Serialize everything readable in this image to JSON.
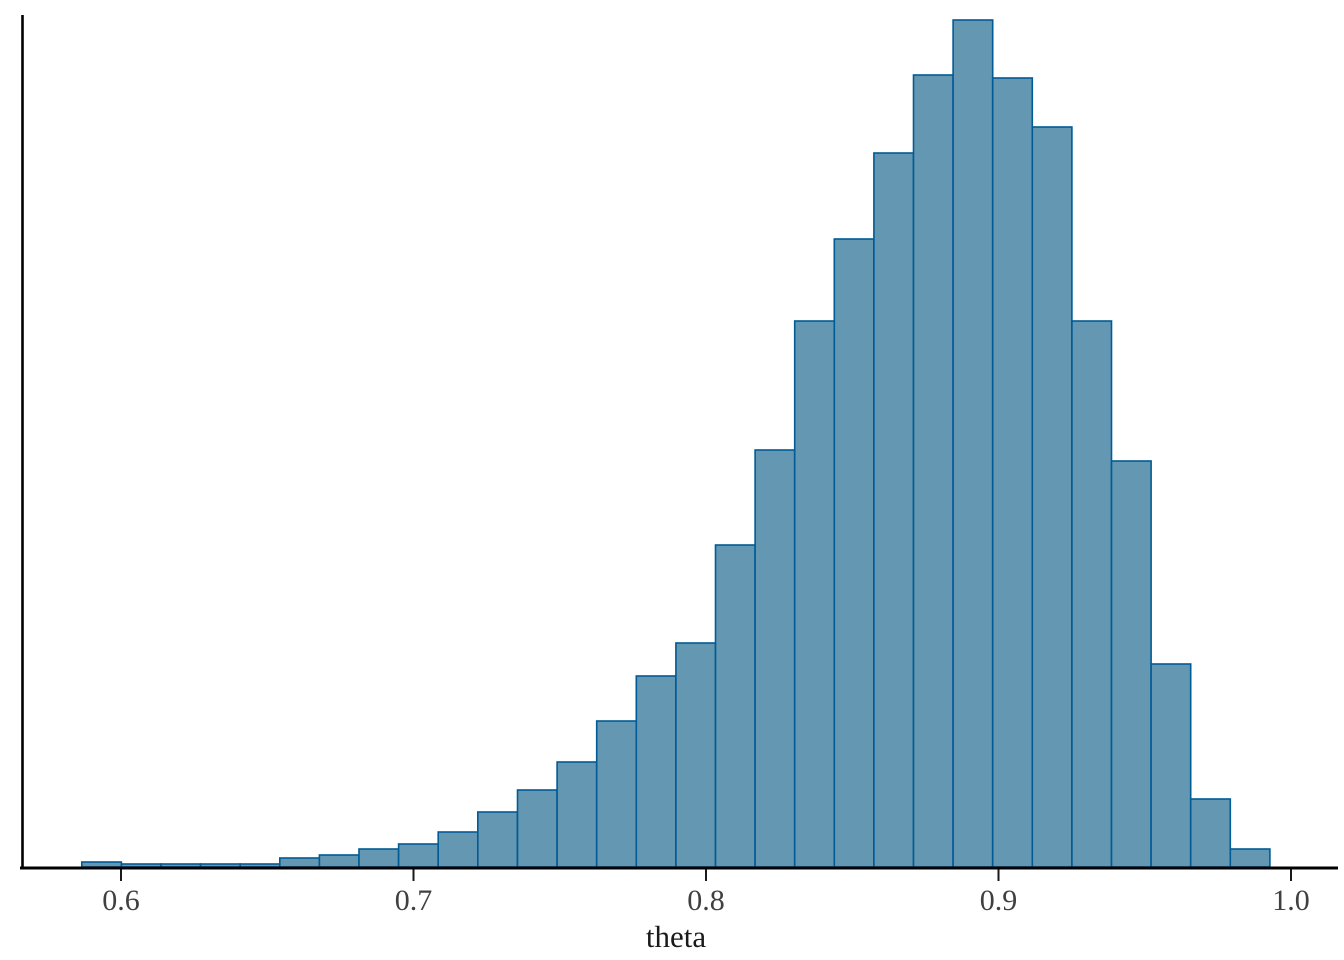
{
  "chart_data": {
    "type": "bar",
    "subtype": "histogram",
    "title": "",
    "xlabel": "theta",
    "ylabel": "",
    "x_tick_values": [
      0.6,
      0.7,
      0.8,
      0.9,
      1.0
    ],
    "x_tick_labels": [
      "0.6",
      "0.7",
      "0.8",
      "0.9",
      "1.0"
    ],
    "x_range_shown": [
      0.56,
      1.02
    ],
    "bin_start": 0.5866,
    "bin_width": 0.01354,
    "bin_count": 30,
    "bin_centers": [
      0.5934,
      0.6069,
      0.6205,
      0.634,
      0.6475,
      0.6611,
      0.6746,
      0.6881,
      0.7017,
      0.7152,
      0.7288,
      0.7423,
      0.7558,
      0.7694,
      0.7829,
      0.7964,
      0.81,
      0.8235,
      0.837,
      0.8506,
      0.8641,
      0.8777,
      0.8912,
      0.9047,
      0.9183,
      0.9318,
      0.9453,
      0.9589,
      0.9724,
      0.986
    ],
    "heights_relative": [
      5,
      3,
      3,
      3,
      3,
      9,
      12,
      18,
      23,
      35,
      55,
      77,
      105,
      146,
      191,
      224,
      322,
      417,
      546,
      628,
      714,
      792,
      847,
      789,
      740,
      546,
      406,
      203,
      68,
      18
    ],
    "y_axis_labeled": false,
    "grid": false,
    "legend": false,
    "colors": {
      "bar_fill": "#6497b1",
      "bar_stroke": "#005b96",
      "axis_line": "#000000",
      "tick_mark": "#1a1a1a",
      "tick_label": "#404040",
      "axis_title": "#1a1a1a",
      "background": "#ffffff"
    }
  }
}
